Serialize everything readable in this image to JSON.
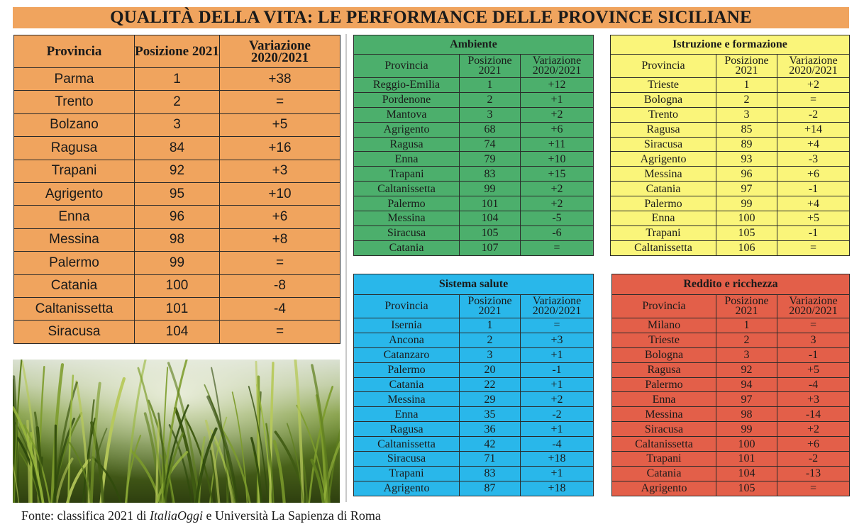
{
  "title": "QUALITÀ DELLA VITA: LE PERFORMANCE DELLE PROVINCE SICILIANE",
  "main_table": {
    "headers": [
      "Provincia",
      "Posizione 2021",
      "Variazione 2020/2021"
    ],
    "rows": [
      [
        "Parma",
        "1",
        "+38"
      ],
      [
        "Trento",
        "2",
        "="
      ],
      [
        "Bolzano",
        "3",
        "+5"
      ],
      [
        "Ragusa",
        "84",
        "+16"
      ],
      [
        "Trapani",
        "92",
        "+3"
      ],
      [
        "Agrigento",
        "95",
        "+10"
      ],
      [
        "Enna",
        "96",
        "+6"
      ],
      [
        "Messina",
        "98",
        "+8"
      ],
      [
        "Palermo",
        "99",
        "="
      ],
      [
        "Catania",
        "100",
        "-8"
      ],
      [
        "Caltanissetta",
        "101",
        "-4"
      ],
      [
        "Siracusa",
        "104",
        "="
      ]
    ]
  },
  "ambiente": {
    "title": "Ambiente",
    "headers": [
      "Provincia",
      "Posizione 2021",
      "Variazione 2020/2021"
    ],
    "rows": [
      [
        "Reggio-Emilia",
        "1",
        "+12"
      ],
      [
        "Pordenone",
        "2",
        "+1"
      ],
      [
        "Mantova",
        "3",
        "+2"
      ],
      [
        "Agrigento",
        "68",
        "+6"
      ],
      [
        "Ragusa",
        "74",
        "+11"
      ],
      [
        "Enna",
        "79",
        "+10"
      ],
      [
        "Trapani",
        "83",
        "+15"
      ],
      [
        "Caltanissetta",
        "99",
        "+2"
      ],
      [
        "Palermo",
        "101",
        "+2"
      ],
      [
        "Messina",
        "104",
        "-5"
      ],
      [
        "Siracusa",
        "105",
        "-6"
      ],
      [
        "Catania",
        "107",
        "="
      ]
    ]
  },
  "istruzione": {
    "title": "Istruzione e formazione",
    "headers": [
      "Provincia",
      "Posizione 2021",
      "Variazione 2020/2021"
    ],
    "rows": [
      [
        "Trieste",
        "1",
        "+2"
      ],
      [
        "Bologna",
        "2",
        "="
      ],
      [
        "Trento",
        "3",
        "-2"
      ],
      [
        "Ragusa",
        "85",
        "+14"
      ],
      [
        "Siracusa",
        "89",
        "+4"
      ],
      [
        "Agrigento",
        "93",
        "-3"
      ],
      [
        "Messina",
        "96",
        "+6"
      ],
      [
        "Catania",
        "97",
        "-1"
      ],
      [
        "Palermo",
        "99",
        "+4"
      ],
      [
        "Enna",
        "100",
        "+5"
      ],
      [
        "Trapani",
        "105",
        "-1"
      ],
      [
        "Caltanissetta",
        "106",
        "="
      ]
    ]
  },
  "salute": {
    "title": "Sistema salute",
    "headers": [
      "Provincia",
      "Posizione 2021",
      "Variazione 2020/2021"
    ],
    "rows": [
      [
        "Isernia",
        "1",
        "="
      ],
      [
        "Ancona",
        "2",
        "+3"
      ],
      [
        "Catanzaro",
        "3",
        "+1"
      ],
      [
        "Palermo",
        "20",
        "-1"
      ],
      [
        "Catania",
        "22",
        "+1"
      ],
      [
        "Messina",
        "29",
        "+2"
      ],
      [
        "Enna",
        "35",
        "-2"
      ],
      [
        "Ragusa",
        "36",
        "+1"
      ],
      [
        "Caltanissetta",
        "42",
        "-4"
      ],
      [
        "Siracusa",
        "71",
        "+18"
      ],
      [
        "Trapani",
        "83",
        "+1"
      ],
      [
        "Agrigento",
        "87",
        "+18"
      ]
    ]
  },
  "reddito": {
    "title": "Reddito e ricchezza",
    "headers": [
      "Provincia",
      "Posizione 2021",
      "Variazione 2020/2021"
    ],
    "rows": [
      [
        "Milano",
        "1",
        "="
      ],
      [
        "Trieste",
        "2",
        "3"
      ],
      [
        "Bologna",
        "3",
        "-1"
      ],
      [
        "Ragusa",
        "92",
        "+5"
      ],
      [
        "Palermo",
        "94",
        "-4"
      ],
      [
        "Enna",
        "97",
        "+3"
      ],
      [
        "Messina",
        "98",
        "-14"
      ],
      [
        "Siracusa",
        "99",
        "+2"
      ],
      [
        "Caltanissetta",
        "100",
        "+6"
      ],
      [
        "Trapani",
        "101",
        "-2"
      ],
      [
        "Catania",
        "104",
        "-13"
      ],
      [
        "Agrigento",
        "105",
        "="
      ]
    ]
  },
  "source": {
    "prefix": "Fonte: classifica 2021 di ",
    "publication": "ItaliaOggi",
    "suffix": " e Università La Sapienza di Roma"
  },
  "colors": {
    "main": "#f0a45e",
    "ambiente": "#4caf6c",
    "istruzione": "#faf57a",
    "salute": "#29b7ea",
    "reddito": "#e35f49"
  }
}
